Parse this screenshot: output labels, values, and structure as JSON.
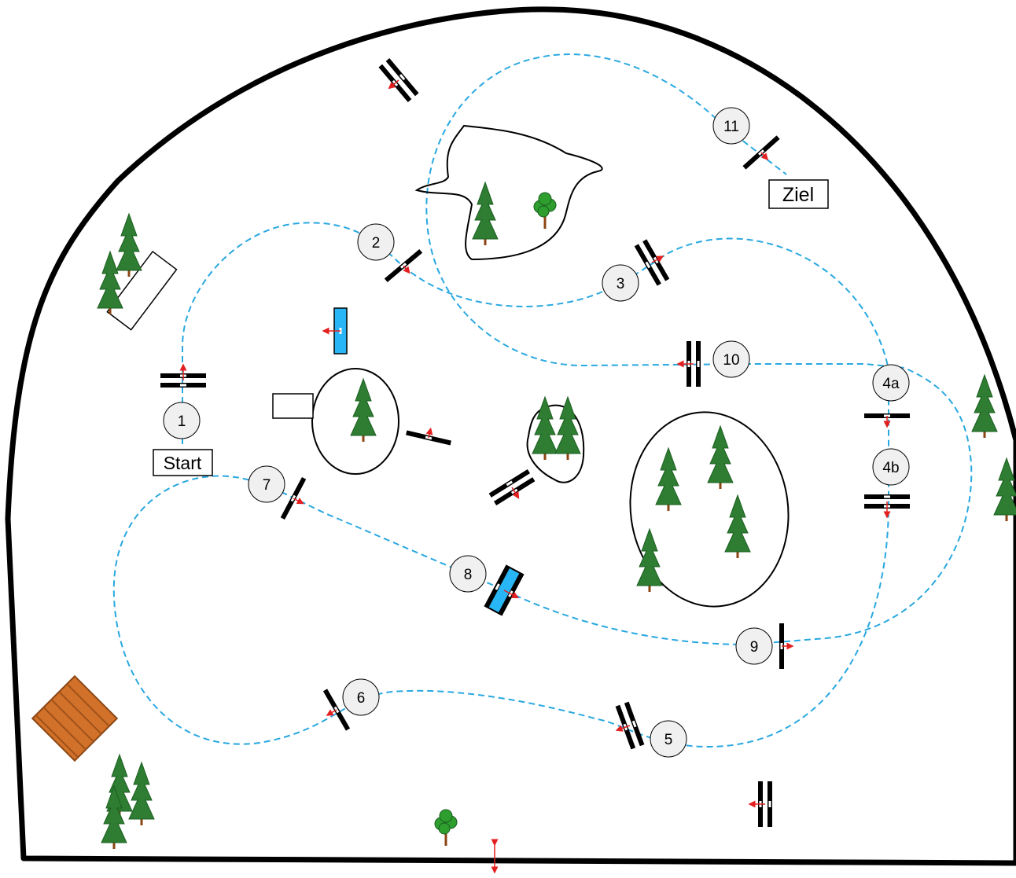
{
  "diagram": {
    "type": "course-map",
    "labels": {
      "start": "Start",
      "finish": "Ziel"
    },
    "stations": [
      {
        "id": "1",
        "label": "1"
      },
      {
        "id": "2",
        "label": "2"
      },
      {
        "id": "3",
        "label": "3"
      },
      {
        "id": "4a",
        "label": "4a"
      },
      {
        "id": "4b",
        "label": "4b"
      },
      {
        "id": "5",
        "label": "5"
      },
      {
        "id": "6",
        "label": "6"
      },
      {
        "id": "7",
        "label": "7"
      },
      {
        "id": "8",
        "label": "8"
      },
      {
        "id": "9",
        "label": "9"
      },
      {
        "id": "10",
        "label": "10"
      },
      {
        "id": "11",
        "label": "11"
      }
    ],
    "colors": {
      "route": "#29a8e0",
      "direction-arrow": "#e41f1f",
      "tree": "#2e7d32",
      "tree-trunk": "#8b4513",
      "water-obstacle": "#29b6f6",
      "station-fill": "#f0f0f0",
      "roof": "#d2722a"
    }
  }
}
